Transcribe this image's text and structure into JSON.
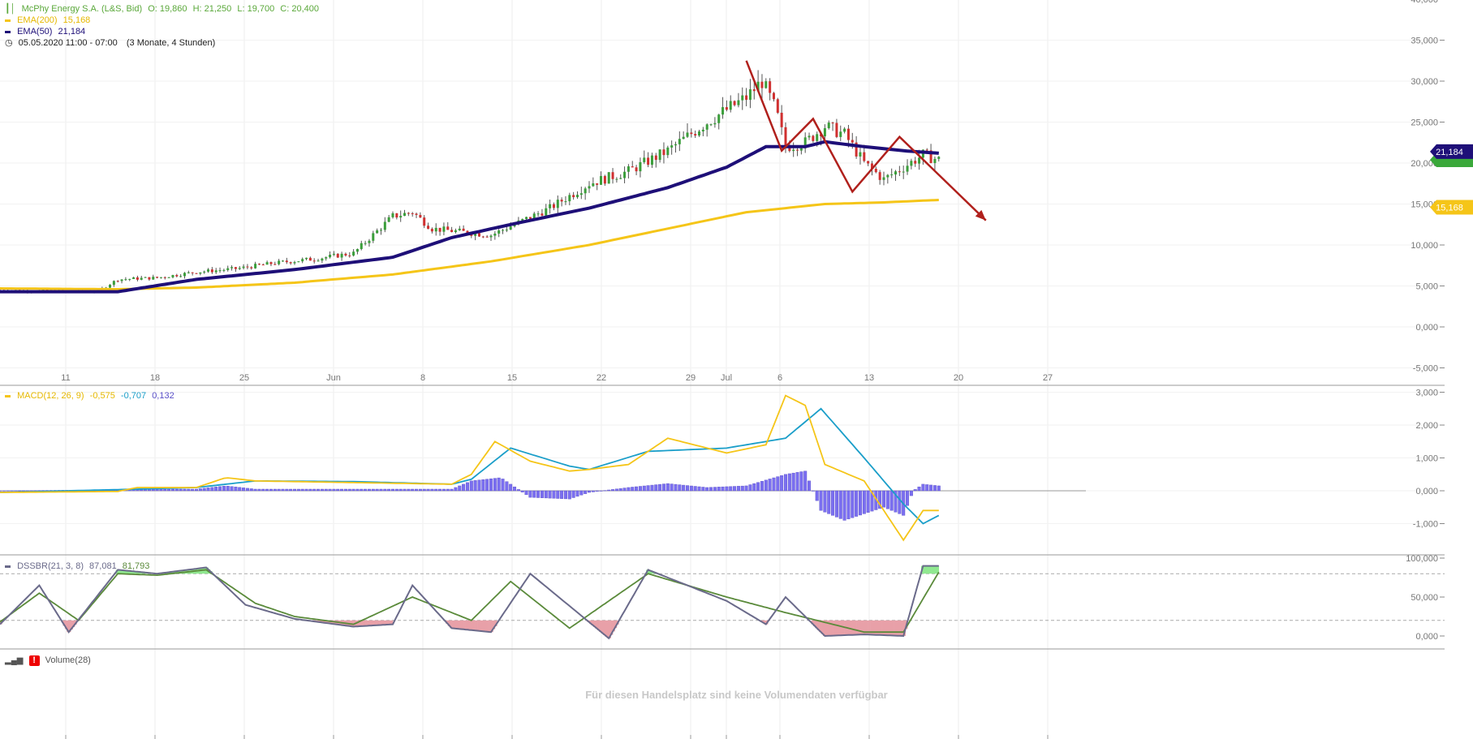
{
  "header": {
    "instrument": "McPhy Energy S.A. (L&S, Bid)",
    "ohlc": {
      "o": "O: 19,860",
      "h": "H: 21,250",
      "l": "L: 19,700",
      "c": "C: 20,400"
    },
    "ema200": {
      "label": "EMA(200)",
      "value": "15,168",
      "color": "#f5c518"
    },
    "ema50": {
      "label": "EMA(50)",
      "value": "21,184",
      "color": "#1e0f78"
    },
    "period": "05.05.2020 11:00 - 07:00",
    "range": "(3 Monate, 4 Stunden)"
  },
  "macd_legend": {
    "label": "MACD(12, 26, 9)",
    "v1": "-0,575",
    "v2": "-0,707",
    "v3": "0,132"
  },
  "dssbr_legend": {
    "label": "DSSBR(21, 3, 8)",
    "v1": "87,081",
    "v2": "81,793"
  },
  "volume_legend": {
    "label": "Volume(28)",
    "message": "Für diesen Handelsplatz sind keine Volumendaten verfügbar"
  },
  "tags": {
    "ema50": "21,184",
    "ema200": "15,168"
  },
  "colors": {
    "candle_up": "#3a9e3a",
    "candle_down": "#d03030",
    "ema50": "#1e0f78",
    "ema200": "#f5c518",
    "macd": "#f5c518",
    "signal": "#1a9ec9",
    "hist": "#7b6ff0",
    "dss": "#6a6a8a",
    "dss_signal": "#5a8a3a",
    "overbought_fill": "#90e890",
    "oversold_fill": "#e8a0a8",
    "annotation": "#b0201c"
  },
  "chart_data": [
    {
      "type": "candlestick",
      "panel": "price",
      "x_ticks": [
        "11",
        "18",
        "25",
        "Jun",
        "8",
        "15",
        "22",
        "29",
        "Jul",
        "6",
        "13",
        "20",
        "27"
      ],
      "y_ticks": [
        "40,000",
        "35,000",
        "30,000",
        "25,000",
        "20,000",
        "15,000",
        "10,000",
        "5,000",
        "0,000",
        "-5,000"
      ],
      "ylim": [
        -5,
        40
      ],
      "close_approx": [
        [
          0,
          4.5
        ],
        [
          20,
          4.4
        ],
        [
          40,
          4.3
        ],
        [
          50,
          4.4
        ],
        [
          60,
          5.8
        ],
        [
          80,
          6.0
        ],
        [
          100,
          6.7
        ],
        [
          120,
          7.1
        ],
        [
          140,
          7.8
        ],
        [
          160,
          8.3
        ],
        [
          180,
          9.0
        ],
        [
          200,
          13.5
        ],
        [
          210,
          14.0
        ],
        [
          220,
          12.0
        ],
        [
          250,
          11.2
        ],
        [
          280,
          14.5
        ],
        [
          300,
          17.5
        ],
        [
          320,
          19.0
        ],
        [
          340,
          21.5
        ],
        [
          360,
          25.0
        ],
        [
          380,
          28.0
        ],
        [
          388,
          30.0
        ],
        [
          395,
          26.5
        ],
        [
          400,
          22.0
        ],
        [
          410,
          22.5
        ],
        [
          420,
          24.5
        ],
        [
          430,
          23.5
        ],
        [
          440,
          20.0
        ],
        [
          450,
          18.0
        ],
        [
          460,
          19.5
        ],
        [
          470,
          21.0
        ],
        [
          478,
          20.4
        ]
      ],
      "ema50_approx": [
        [
          0,
          4.3
        ],
        [
          60,
          4.3
        ],
        [
          100,
          5.8
        ],
        [
          150,
          7.0
        ],
        [
          200,
          8.5
        ],
        [
          230,
          10.9
        ],
        [
          260,
          12.5
        ],
        [
          300,
          14.5
        ],
        [
          340,
          17.0
        ],
        [
          370,
          19.5
        ],
        [
          390,
          22.0
        ],
        [
          410,
          22.0
        ],
        [
          420,
          22.6
        ],
        [
          440,
          22.0
        ],
        [
          460,
          21.5
        ],
        [
          478,
          21.2
        ]
      ],
      "ema200_approx": [
        [
          0,
          4.7
        ],
        [
          60,
          4.6
        ],
        [
          100,
          4.8
        ],
        [
          150,
          5.4
        ],
        [
          200,
          6.4
        ],
        [
          250,
          8.0
        ],
        [
          300,
          10.0
        ],
        [
          340,
          12.0
        ],
        [
          380,
          14.0
        ],
        [
          420,
          15.0
        ],
        [
          450,
          15.2
        ],
        [
          478,
          15.5
        ]
      ],
      "annotation_zigzag": [
        [
          380,
          32.5
        ],
        [
          398,
          21.5
        ],
        [
          414,
          25.4
        ],
        [
          434,
          16.5
        ],
        [
          458,
          23.2
        ],
        [
          502,
          13.0
        ]
      ]
    },
    {
      "type": "line",
      "panel": "macd",
      "y_ticks": [
        "3,000",
        "2,000",
        "1,000",
        "0,000",
        "-1,000"
      ],
      "ylim": [
        -1.55,
        3.15
      ],
      "series": [
        {
          "name": "MACD(12, 26, 9)",
          "values": [
            [
              0,
              -0.05
            ],
            [
              60,
              -0.02
            ],
            [
              70,
              0.1
            ],
            [
              90,
              0.1
            ],
            [
              100,
              0.1
            ],
            [
              115,
              0.4
            ],
            [
              130,
              0.3
            ],
            [
              180,
              0.25
            ],
            [
              230,
              0.2
            ],
            [
              240,
              0.5
            ],
            [
              252,
              1.5
            ],
            [
              270,
              0.9
            ],
            [
              290,
              0.6
            ],
            [
              300,
              0.65
            ],
            [
              320,
              0.8
            ],
            [
              340,
              1.6
            ],
            [
              370,
              1.15
            ],
            [
              390,
              1.4
            ],
            [
              400,
              2.9
            ],
            [
              410,
              2.6
            ],
            [
              420,
              0.8
            ],
            [
              440,
              0.3
            ],
            [
              460,
              -1.5
            ],
            [
              470,
              -0.6
            ],
            [
              478,
              -0.6
            ]
          ]
        },
        {
          "name": "signal",
          "values": [
            [
              0,
              -0.05
            ],
            [
              70,
              0.05
            ],
            [
              100,
              0.1
            ],
            [
              130,
              0.3
            ],
            [
              180,
              0.28
            ],
            [
              230,
              0.2
            ],
            [
              240,
              0.35
            ],
            [
              260,
              1.3
            ],
            [
              290,
              0.75
            ],
            [
              300,
              0.65
            ],
            [
              330,
              1.2
            ],
            [
              370,
              1.3
            ],
            [
              400,
              1.6
            ],
            [
              418,
              2.5
            ],
            [
              440,
              1.0
            ],
            [
              460,
              -0.4
            ],
            [
              470,
              -1.0
            ],
            [
              478,
              -0.75
            ]
          ]
        }
      ],
      "histogram": [
        [
          0,
          0.0
        ],
        [
          60,
          0.03
        ],
        [
          70,
          0.05
        ],
        [
          100,
          0.05
        ],
        [
          115,
          0.15
        ],
        [
          130,
          0.05
        ],
        [
          180,
          0.05
        ],
        [
          230,
          0.05
        ],
        [
          240,
          0.3
        ],
        [
          255,
          0.4
        ],
        [
          270,
          -0.2
        ],
        [
          290,
          -0.25
        ],
        [
          300,
          -0.05
        ],
        [
          320,
          0.1
        ],
        [
          340,
          0.22
        ],
        [
          360,
          0.1
        ],
        [
          380,
          0.15
        ],
        [
          400,
          0.5
        ],
        [
          410,
          0.6
        ],
        [
          418,
          -0.6
        ],
        [
          430,
          -0.9
        ],
        [
          450,
          -0.5
        ],
        [
          460,
          -0.75
        ],
        [
          465,
          0.0
        ],
        [
          470,
          0.2
        ],
        [
          478,
          0.15
        ]
      ]
    },
    {
      "type": "line",
      "panel": "dssbr",
      "y_ticks": [
        "100,000",
        "50,000",
        "0,000"
      ],
      "ylim": [
        -10,
        105
      ],
      "series": [
        {
          "name": "DSSBR(21, 3, 8)",
          "values": [
            [
              0,
              15
            ],
            [
              20,
              65
            ],
            [
              35,
              5
            ],
            [
              60,
              85
            ],
            [
              80,
              80
            ],
            [
              105,
              88
            ],
            [
              125,
              40
            ],
            [
              150,
              22
            ],
            [
              180,
              12
            ],
            [
              200,
              15
            ],
            [
              210,
              65
            ],
            [
              230,
              10
            ],
            [
              250,
              5
            ],
            [
              270,
              80
            ],
            [
              310,
              -3
            ],
            [
              330,
              85
            ],
            [
              370,
              45
            ],
            [
              390,
              15
            ],
            [
              400,
              50
            ],
            [
              420,
              0
            ],
            [
              440,
              2
            ],
            [
              460,
              0
            ],
            [
              470,
              90
            ],
            [
              478,
              90
            ]
          ]
        },
        {
          "name": "signal",
          "values": [
            [
              0,
              18
            ],
            [
              20,
              55
            ],
            [
              40,
              20
            ],
            [
              60,
              80
            ],
            [
              80,
              78
            ],
            [
              105,
              85
            ],
            [
              130,
              42
            ],
            [
              150,
              25
            ],
            [
              180,
              15
            ],
            [
              210,
              50
            ],
            [
              240,
              20
            ],
            [
              260,
              70
            ],
            [
              290,
              10
            ],
            [
              330,
              80
            ],
            [
              370,
              50
            ],
            [
              400,
              30
            ],
            [
              440,
              5
            ],
            [
              460,
              5
            ],
            [
              478,
              82
            ]
          ]
        }
      ],
      "levels": [
        20,
        80
      ]
    }
  ]
}
